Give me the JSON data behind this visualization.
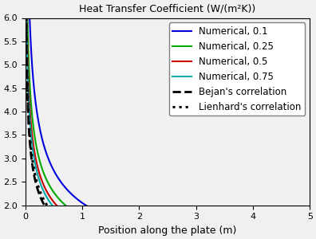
{
  "title": "Heat Transfer Coefficient (W/(m²K))",
  "xlabel": "Position along the plate (m)",
  "xlim": [
    0,
    5
  ],
  "ylim": [
    2,
    6
  ],
  "yticks": [
    2,
    2.5,
    3,
    3.5,
    4,
    4.5,
    5,
    5.5,
    6
  ],
  "xticks": [
    0,
    1,
    2,
    3,
    4,
    5
  ],
  "lines": [
    {
      "label": "Numerical, 0.1",
      "color": "#0000dd",
      "style": "-",
      "lw": 1.5,
      "type": "numerical",
      "A": 2.05,
      "x0": 0.0,
      "n": 0.42
    },
    {
      "label": "Numerical, 0.25",
      "color": "#00aa00",
      "style": "-",
      "lw": 1.5,
      "type": "numerical",
      "A": 1.75,
      "x0": 0.0,
      "n": 0.38
    },
    {
      "label": "Numerical, 0.5",
      "color": "#cc0000",
      "style": "-",
      "lw": 1.5,
      "type": "numerical",
      "A": 1.6,
      "x0": 0.0,
      "n": 0.37
    },
    {
      "label": "Numerical, 0.75",
      "color": "#00aaaa",
      "style": "-",
      "lw": 1.5,
      "type": "numerical",
      "A": 1.52,
      "x0": 0.0,
      "n": 0.365
    },
    {
      "label": "Bejan's correlation",
      "color": "#000000",
      "style": "--",
      "lw": 2.0,
      "type": "corr",
      "A": 1.35,
      "x0": 0.0,
      "n": 0.36
    },
    {
      "label": "Lienhard's correlation",
      "color": "#000000",
      "style": ":",
      "lw": 2.2,
      "type": "corr",
      "A": 1.42,
      "x0": 0.0,
      "n": 0.355
    }
  ],
  "background_color": "#f0f0f0",
  "legend_loc": "upper right",
  "legend_fontsize": 8.5
}
